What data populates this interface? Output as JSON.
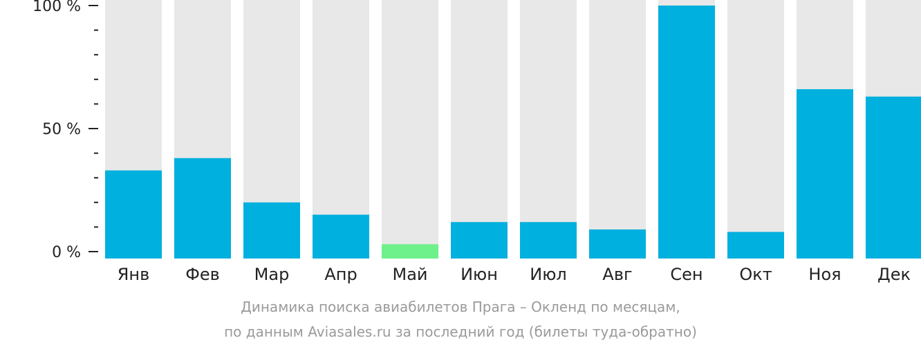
{
  "chart_data": {
    "type": "bar",
    "categories": [
      "Янв",
      "Фев",
      "Мар",
      "Апр",
      "Май",
      "Июн",
      "Июл",
      "Авг",
      "Сен",
      "Окт",
      "Ноя",
      "Дек"
    ],
    "values": [
      33,
      38,
      20,
      15,
      3,
      12,
      12,
      9,
      100,
      8,
      66,
      63
    ],
    "ylim": [
      0,
      100
    ],
    "yticks": [
      "0 %",
      "50 %",
      "100 %"
    ],
    "ytick_values": [
      0,
      50,
      100
    ],
    "minor_ticks_per_major": 5,
    "highlight_index": 4,
    "colors": {
      "bar": "#00b0de",
      "highlight": "#6ef08b",
      "track": "#e8e8e8",
      "axis": "#222222"
    },
    "grid": false,
    "legend": "none"
  },
  "caption": {
    "line1": "Динамика поиска авиабилетов Прага – Окленд по месяцам,",
    "line2": "по данным Aviasales.ru за последний год (билеты туда-обратно)"
  }
}
